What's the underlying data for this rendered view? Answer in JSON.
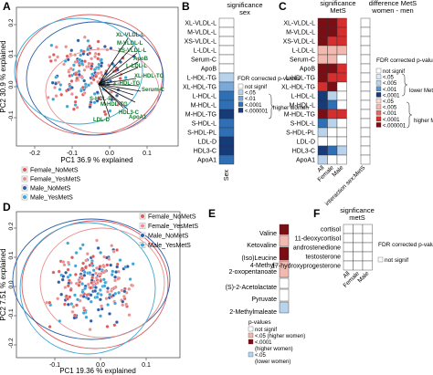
{
  "panels": {
    "A": "A",
    "B": "B",
    "C": "C",
    "D": "D",
    "E": "E",
    "F": "F"
  },
  "colors": {
    "female_nomets": "#e05a5a",
    "female_yesmets": "#e89090",
    "male_nomets": "#2f5da8",
    "male_yesmets": "#3aa7d6",
    "arrow_green": "#127a2f",
    "dark_red": "#7b0e14",
    "red": "#d42e2e",
    "light_red": "#f2b9b0",
    "navy": "#173a78",
    "blue": "#2f6fb5",
    "light_blue": "#b9d3ec"
  },
  "legend_groups": [
    "Female_NoMetS",
    "Female_YesMetS",
    "Male_NoMetS",
    "Male_YesMetS"
  ],
  "pca_A": {
    "xlabel": "PC1 36.9 % explained",
    "ylabel": "PC2 30.9 % explained",
    "xticks": [
      "-0.2",
      "-0.1",
      "0.0",
      "0.1"
    ],
    "yticks": [
      "-0.1",
      "0.0",
      "0.1",
      "0.2"
    ],
    "arrow_labels": [
      "XL-VLDL-L",
      "M-VLDL-L",
      "XS-VLDL-L",
      "ApoB",
      "L-LDL-L",
      "XL-HDL-TG",
      "L-HDL-TG",
      "Serum-C",
      "S-HDL-PL",
      "M-HDL-TG",
      "HDL3-C",
      "ApoA1",
      "LDL-D"
    ]
  },
  "chart_data": [
    {
      "type": "heatmap",
      "panel": "B",
      "title": "significance",
      "subtitle": "sex",
      "rows": [
        "XL-VLDL-L",
        "M-VLDL-L",
        "XS-VLDL-L",
        "L-LDL-L",
        "Serum-C",
        "ApoB",
        "L-HDL-TG",
        "XL-HDL-TG",
        "L-HDL-L",
        "M-HDL-L",
        "M-HDL-TG",
        "S-HDL-L",
        "S-HDL-PL",
        "LDL-D",
        "HDL3-C",
        "ApoA1"
      ],
      "columns": [
        "Sex"
      ],
      "values": [
        [
          "none"
        ],
        [
          "none"
        ],
        [
          "none"
        ],
        [
          "none"
        ],
        [
          "none"
        ],
        [
          "none"
        ],
        [
          "<.05"
        ],
        [
          "<.01"
        ],
        [
          "<.0001"
        ],
        [
          "<.0001"
        ],
        [
          "<.000001"
        ],
        [
          "<.0001"
        ],
        [
          "<.0001"
        ],
        [
          "<.000001"
        ],
        [
          "<.000001"
        ],
        [
          "<.0001"
        ]
      ],
      "legend_title": "FDR corrected p-values",
      "legend_items": [
        "not signif",
        "<.05",
        "<.01",
        "<.0001",
        "<.000001"
      ],
      "legend_note": "higher women"
    },
    {
      "type": "heatmap",
      "panel": "C",
      "title": "significance",
      "subtitle": "MetS",
      "title2": "difference MetS",
      "subtitle2": "women - men",
      "rows": [
        "XL-VLDL-L",
        "M-VLDL-L",
        "XS-VLDL-L",
        "L-LDL-L",
        "Serum-C",
        "ApoB",
        "L-HDL-TG",
        "XL-HDL-TG",
        "L-HDL-L",
        "M-HDL-L",
        "M-HDL-TG",
        "S-HDL-L",
        "S-HDL-PL",
        "LDL-D",
        "HDL3-C",
        "ApoA1"
      ],
      "columns": [
        "All",
        "Female",
        "Male"
      ],
      "values": [
        [
          "dr",
          "dr",
          "r"
        ],
        [
          "dr",
          "dr",
          "r"
        ],
        [
          "dr",
          "r",
          "r"
        ],
        [
          "lr",
          "lr",
          "lr"
        ],
        [
          "lr",
          "lr",
          "w"
        ],
        [
          "dr",
          "dr",
          "r"
        ],
        [
          "dr",
          "r",
          "r"
        ],
        [
          "r",
          "dr",
          "w"
        ],
        [
          "nv",
          "lb",
          "w"
        ],
        [
          "nv",
          "b",
          "w"
        ],
        [
          "dr",
          "r",
          "r"
        ],
        [
          "b",
          "lb",
          "w"
        ],
        [
          "lb",
          "w",
          "w"
        ],
        [
          "w",
          "w",
          "w"
        ],
        [
          "nv",
          "b",
          "lb"
        ],
        [
          "lb",
          "w",
          "w"
        ]
      ],
      "interaction_label": "interaction sex:MetS",
      "legend_title": "FDR corrected p-values",
      "legend_items": [
        "not signif",
        "<.05",
        "<.005",
        "<.001",
        "<.0001",
        "<.05",
        "<.005",
        "<.001",
        "<.0001",
        "<.000001"
      ],
      "legend_lower": "lower MetS",
      "legend_higher": "higher MetS"
    },
    {
      "type": "heatmap",
      "panel": "E",
      "rows": [
        "Valine",
        "Ketovaline",
        "(Iso)Leucine",
        "4-Methyl-2-oxopentanoate",
        "(S)-2-Acetolactate",
        "Pyruvate",
        "2-Methylmaleate"
      ],
      "rows_display": [
        "Valine",
        "Ketovaline",
        "(Iso)Leucine",
        "4-Methyl-",
        "2-oxopentanoate",
        "(S)-2-Acetolactate",
        "Pyruvate",
        "2-Methylmaleate"
      ],
      "values": [
        "<.0001 higher women",
        "<.05 higher women",
        "<.0001 higher women",
        "<.05 higher women",
        "not signif",
        "not signif",
        "<.05 lower women"
      ],
      "legend_title": "p-values",
      "legend_items": [
        "not signif",
        "<.05 (higher women)",
        "<.0001 (higher women)",
        "<.05 (lower women)"
      ],
      "legend_item_lines": [
        "not signif",
        "<.05 (higher women)",
        "<.0001",
        "(higher women)",
        "<.05",
        "(lower women)"
      ]
    },
    {
      "type": "heatmap",
      "panel": "F",
      "title": "signficance",
      "subtitle": "metS",
      "rows": [
        "cortisol",
        "11-deoxycortisol",
        "androstenedione",
        "testosterone",
        "17-hydroxyprogesterone"
      ],
      "columns": [
        "All",
        "Female",
        "Male"
      ],
      "values": [
        [
          "none",
          "none",
          "none"
        ],
        [
          "none",
          "none",
          "none"
        ],
        [
          "none",
          "none",
          "none"
        ],
        [
          "none",
          "none",
          "none"
        ],
        [
          "none",
          "none",
          "none"
        ]
      ],
      "legend_title": "FDR corrected p-values",
      "legend_items": [
        "not signif"
      ]
    },
    {
      "type": "scatter",
      "panel": "D",
      "xlabel": "PC1 19.36 % explained",
      "ylabel": "PC2 7.51 % explained",
      "xticks": [
        "-0.1",
        "0.0",
        "0.1"
      ],
      "yticks": [
        "-0.2",
        "-0.1",
        "0.0",
        "0.1",
        "0.2"
      ]
    }
  ]
}
